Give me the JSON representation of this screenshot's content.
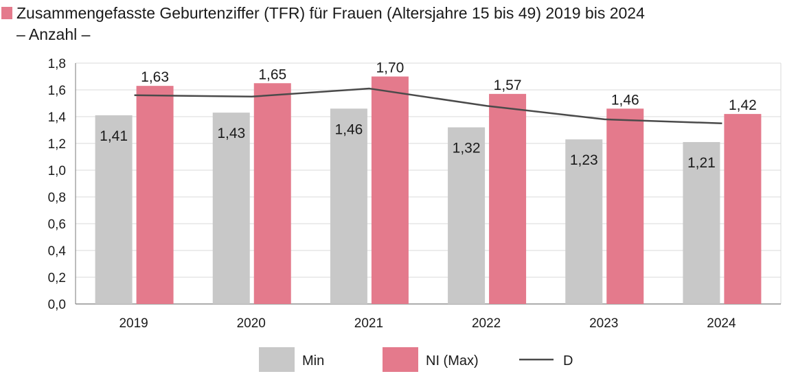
{
  "title": "Zusammengefasste Geburtenziffer (TFR) für Frauen (Altersjahre 15 bis 49) 2019 bis 2024",
  "subtitle": "– Anzahl –",
  "colors": {
    "min": "#c8c8c8",
    "max": "#e47a8c",
    "line": "#4a4a4a",
    "grid": "#d9d9d9"
  },
  "chart_data": {
    "type": "bar",
    "categories": [
      "2019",
      "2020",
      "2021",
      "2022",
      "2023",
      "2024"
    ],
    "series": [
      {
        "name": "Min",
        "type": "bar",
        "values": [
          1.41,
          1.43,
          1.46,
          1.32,
          1.23,
          1.21
        ],
        "labels": [
          "1,41",
          "1,43",
          "1,46",
          "1,32",
          "1,23",
          "1,21"
        ]
      },
      {
        "name": "NI (Max)",
        "type": "bar",
        "values": [
          1.63,
          1.65,
          1.7,
          1.57,
          1.46,
          1.42
        ],
        "labels": [
          "1,63",
          "1,65",
          "1,70",
          "1,57",
          "1,46",
          "1,42"
        ]
      },
      {
        "name": "D",
        "type": "line",
        "values": [
          1.56,
          1.55,
          1.61,
          1.48,
          1.38,
          1.35
        ]
      }
    ],
    "yticks": [
      "0,0",
      "0,2",
      "0,4",
      "0,6",
      "0,8",
      "1,0",
      "1,2",
      "1,4",
      "1,6",
      "1,8"
    ],
    "ylim": [
      0,
      1.8
    ],
    "grid": true,
    "legend_position": "bottom"
  }
}
